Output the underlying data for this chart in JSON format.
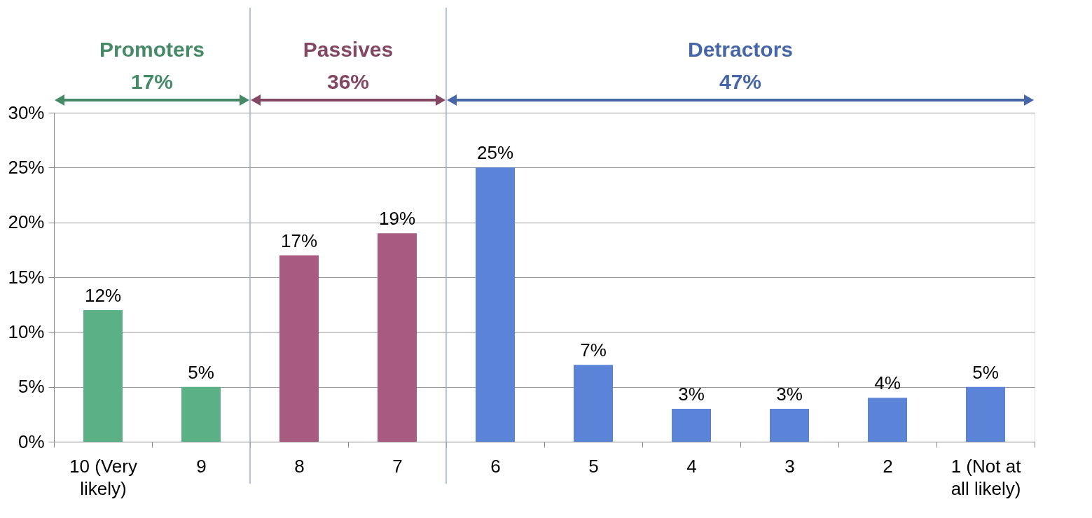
{
  "chart_data": {
    "type": "bar",
    "categories": [
      "10 (Very\nlikely)",
      "9",
      "8",
      "7",
      "6",
      "5",
      "4",
      "3",
      "2",
      "1 (Not at\nall likely)"
    ],
    "values": [
      12,
      5,
      17,
      19,
      25,
      7,
      3,
      3,
      4,
      5
    ],
    "colors": [
      "#5bb085",
      "#5bb085",
      "#a85a80",
      "#a85a80",
      "#5b84d8",
      "#5b84d8",
      "#5b84d8",
      "#5b84d8",
      "#5b84d8",
      "#5b84d8"
    ],
    "value_labels": [
      "12%",
      "5%",
      "17%",
      "19%",
      "25%",
      "7%",
      "3%",
      "3%",
      "4%",
      "5%"
    ],
    "ylim": [
      0,
      30
    ],
    "yticks": [
      {
        "value": 0,
        "label": "0%"
      },
      {
        "value": 5,
        "label": "5%"
      },
      {
        "value": 10,
        "label": "10%"
      },
      {
        "value": 15,
        "label": "15%"
      },
      {
        "value": 20,
        "label": "20%"
      },
      {
        "value": 25,
        "label": "25%"
      },
      {
        "value": 30,
        "label": "30%"
      }
    ],
    "grid": "y",
    "annotations": [
      "Promoters\n17%",
      "Passives\n36%",
      "Detractors\n47%"
    ]
  }
}
